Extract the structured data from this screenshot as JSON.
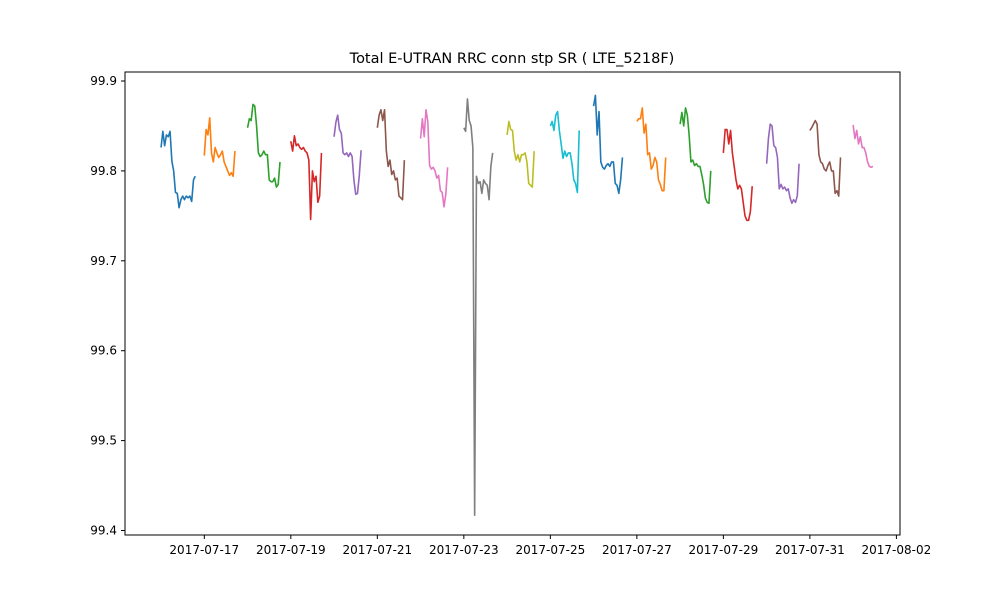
{
  "chart_data": {
    "type": "line",
    "title": "Total E-UTRAN RRC conn stp SR ( LTE_5218F)",
    "xlabel": "",
    "ylabel": "",
    "xlim": [
      "2017-07-15T04:00",
      "2017-08-02T02:00"
    ],
    "ylim": [
      99.395,
      99.91
    ],
    "grid": false,
    "xticks": [
      "2017-07-17",
      "2017-07-19",
      "2017-07-21",
      "2017-07-23",
      "2017-07-25",
      "2017-07-27",
      "2017-07-29",
      "2017-07-31",
      "2017-08-02"
    ],
    "yticks": [
      "99.4",
      "99.5",
      "99.6",
      "99.7",
      "99.8",
      "99.9"
    ],
    "colors": [
      "#1f77b4",
      "#ff7f0e",
      "#2ca02c",
      "#d62728",
      "#9467bd",
      "#8c564b",
      "#e377c2",
      "#7f7f7f",
      "#bcbd22",
      "#17becf"
    ],
    "series": [
      {
        "start": "2017-07-16T00:00",
        "values": [
          99.826,
          99.844,
          99.828,
          99.84,
          99.838,
          99.844,
          99.811,
          99.8,
          99.776,
          99.775,
          99.759,
          99.768,
          99.772,
          99.768,
          99.772,
          99.77,
          99.772,
          99.766,
          99.79,
          99.794
        ]
      },
      {
        "start": "2017-07-17T00:00",
        "values": [
          99.817,
          99.846,
          99.84,
          99.859,
          99.82,
          99.81,
          99.826,
          99.82,
          99.815,
          99.818,
          99.822,
          99.81,
          99.805,
          99.8,
          99.795,
          99.798,
          99.794,
          99.822
        ]
      },
      {
        "start": "2017-07-18T00:00",
        "values": [
          99.848,
          99.858,
          99.856,
          99.874,
          99.872,
          99.85,
          99.82,
          99.816,
          99.818,
          99.822,
          99.818,
          99.818,
          99.79,
          99.788,
          99.788,
          99.792,
          99.782,
          99.785,
          99.81
        ]
      },
      {
        "start": "2017-07-19T00:00",
        "values": [
          99.833,
          99.822,
          99.839,
          99.828,
          99.83,
          99.826,
          99.824,
          99.826,
          99.822,
          99.82,
          99.812,
          99.746,
          99.8,
          99.788,
          99.794,
          99.765,
          99.772,
          99.82
        ]
      },
      {
        "start": "2017-07-20T00:00",
        "values": [
          99.838,
          99.854,
          99.862,
          99.846,
          99.842,
          99.82,
          99.818,
          99.82,
          99.816,
          99.82,
          99.816,
          99.79,
          99.774,
          99.775,
          99.795,
          99.823
        ]
      },
      {
        "start": "2017-07-21T00:00",
        "values": [
          99.848,
          99.862,
          99.868,
          99.856,
          99.868,
          99.822,
          99.805,
          99.812,
          99.796,
          99.8,
          99.79,
          99.792,
          99.772,
          99.77,
          99.768,
          99.812
        ]
      },
      {
        "start": "2017-07-22T00:00",
        "values": [
          99.836,
          99.858,
          99.838,
          99.868,
          99.855,
          99.806,
          99.802,
          99.804,
          99.8,
          99.792,
          99.795,
          99.778,
          99.776,
          99.76,
          99.774,
          99.804
        ]
      },
      {
        "start": "2017-07-23T00:00",
        "values": [
          99.848,
          99.844,
          99.88,
          99.856,
          99.85,
          99.826,
          99.417,
          99.794,
          99.786,
          99.788,
          99.775,
          99.79,
          99.786,
          99.784,
          99.768,
          99.805,
          99.82
        ]
      },
      {
        "start": "2017-07-24T00:00",
        "values": [
          99.84,
          99.855,
          99.846,
          99.845,
          99.822,
          99.812,
          99.818,
          99.81,
          99.818,
          99.818,
          99.82,
          99.81,
          99.786,
          99.784,
          99.782,
          99.822
        ]
      },
      {
        "start": "2017-07-25T00:00",
        "values": [
          99.85,
          99.855,
          99.845,
          99.862,
          99.866,
          99.845,
          99.83,
          99.814,
          99.822,
          99.816,
          99.82,
          99.82,
          99.808,
          99.79,
          99.786,
          99.776,
          99.845
        ]
      },
      {
        "start": "2017-07-26T00:00",
        "values": [
          99.872,
          99.884,
          99.84,
          99.866,
          99.81,
          99.804,
          99.802,
          99.806,
          99.808,
          99.805,
          99.81,
          99.81,
          99.786,
          99.784,
          99.775,
          99.79,
          99.815
        ]
      },
      {
        "start": "2017-07-27T00:00",
        "values": [
          99.855,
          99.858,
          99.858,
          99.87,
          99.842,
          99.852,
          99.818,
          99.82,
          99.802,
          99.806,
          99.815,
          99.81,
          99.79,
          99.785,
          99.778,
          99.778,
          99.815
        ]
      },
      {
        "start": "2017-07-28T00:00",
        "values": [
          99.852,
          99.865,
          99.85,
          99.87,
          99.862,
          99.84,
          99.81,
          99.812,
          99.806,
          99.808,
          99.805,
          99.805,
          99.796,
          99.785,
          99.77,
          99.765,
          99.764,
          99.8
        ]
      },
      {
        "start": "2017-07-29T00:00",
        "values": [
          99.82,
          99.846,
          99.846,
          99.83,
          99.845,
          99.82,
          99.805,
          99.79,
          99.78,
          99.784,
          99.78,
          99.765,
          99.75,
          99.745,
          99.745,
          99.755,
          99.783
        ]
      },
      {
        "start": "2017-07-30T00:00",
        "values": [
          99.808,
          99.836,
          99.852,
          99.85,
          99.828,
          99.826,
          99.815,
          99.78,
          99.785,
          99.78,
          99.782,
          99.778,
          99.78,
          99.77,
          99.764,
          99.768,
          99.765,
          99.772,
          99.808
        ]
      },
      {
        "start": "2017-07-31T00:00",
        "values": [
          99.845,
          99.848,
          99.852,
          99.856,
          99.852,
          99.818,
          99.81,
          99.808,
          99.802,
          99.8,
          99.806,
          99.81,
          99.8,
          99.8,
          99.775,
          99.778,
          99.772,
          99.815
        ]
      },
      {
        "start": "2017-08-01T00:00",
        "values": [
          99.851,
          99.836,
          99.845,
          99.83,
          99.838,
          99.826,
          99.826,
          99.82,
          99.81,
          99.805,
          99.804,
          99.805
        ]
      }
    ]
  }
}
